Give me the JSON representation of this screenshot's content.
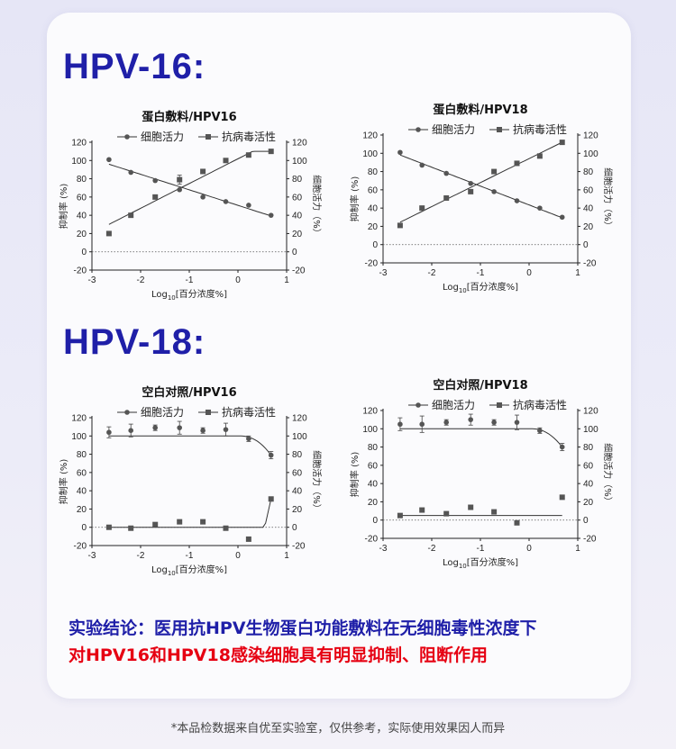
{
  "sections": [
    {
      "title": "HPV-16:"
    },
    {
      "title": "HPV-18:"
    }
  ],
  "conclusion": {
    "line1": "实验结论：医用抗HPV生物蛋白功能敷料在无细胞毒性浓度下",
    "line2": "对HPV16和HPV18感染细胞具有明显抑制、阻断作用"
  },
  "footnote": "*本品检数据来自优至实验室，仅供参考，实际使用效果因人而异",
  "colors": {
    "title": "#1f1fa8",
    "highlight": "#e60012",
    "marker": "#555555"
  },
  "chart_data": [
    {
      "type": "scatter",
      "title": "蛋白敷料/HPV16",
      "xlabel_main": "Log",
      "xlabel_sub": "10",
      "xlabel_tail": "[百分浓度%]",
      "ylabel_left": "抑制率 (%)",
      "ylabel_right": "细胞活力（%）",
      "xlim": [
        -3,
        1
      ],
      "ylim": [
        -20,
        120
      ],
      "xticks": [
        "-3",
        "-2",
        "-1",
        "0",
        "1"
      ],
      "yticks": [
        "-20",
        "0",
        "20",
        "40",
        "60",
        "80",
        "100",
        "120"
      ],
      "legend": [
        "细胞活力",
        "抗病毒活性"
      ],
      "series": [
        {
          "name": "细胞活力",
          "marker": "circle",
          "trend": "down",
          "x": [
            -2.65,
            -2.2,
            -1.7,
            -1.2,
            -0.72,
            -0.25,
            0.22,
            0.68
          ],
          "y": [
            101,
            87,
            78,
            68,
            60,
            55,
            51,
            40
          ],
          "err": [
            0,
            0,
            0,
            0,
            0,
            0,
            0,
            0
          ]
        },
        {
          "name": "抗病毒活性",
          "marker": "square",
          "trend": "up",
          "x": [
            -2.65,
            -2.2,
            -1.7,
            -1.2,
            -0.72,
            -0.25,
            0.22,
            0.68
          ],
          "y": [
            20,
            40,
            60,
            79,
            88,
            100,
            106,
            110
          ],
          "err": [
            0,
            0,
            0,
            5,
            0,
            0,
            0,
            0
          ]
        }
      ]
    },
    {
      "type": "scatter",
      "title": "蛋白敷料/HPV18",
      "xlabel_main": "Log",
      "xlabel_sub": "10",
      "xlabel_tail": "[百分浓度%]",
      "ylabel_left": "抑制率 (%)",
      "ylabel_right": "细胞活力（%）",
      "xlim": [
        -3,
        1
      ],
      "ylim": [
        -20,
        120
      ],
      "xticks": [
        "-3",
        "-2",
        "-1",
        "0",
        "1"
      ],
      "yticks": [
        "-20",
        "0",
        "20",
        "40",
        "60",
        "80",
        "100",
        "120"
      ],
      "legend": [
        "细胞活力",
        "抗病毒活性"
      ],
      "series": [
        {
          "name": "细胞活力",
          "marker": "circle",
          "trend": "down",
          "x": [
            -2.65,
            -2.2,
            -1.7,
            -1.2,
            -0.72,
            -0.25,
            0.22,
            0.68
          ],
          "y": [
            101,
            87,
            78,
            67,
            58,
            48,
            40,
            30
          ],
          "err": [
            0,
            0,
            0,
            0,
            0,
            0,
            0,
            0
          ]
        },
        {
          "name": "抗病毒活性",
          "marker": "square",
          "trend": "up",
          "x": [
            -2.65,
            -2.2,
            -1.7,
            -1.2,
            -0.72,
            -0.25,
            0.22,
            0.68
          ],
          "y": [
            21,
            40,
            51,
            58,
            80,
            89,
            97,
            112
          ],
          "err": [
            0,
            0,
            0,
            0,
            0,
            0,
            0,
            0
          ]
        }
      ]
    },
    {
      "type": "scatter",
      "title": "空白对照/HPV16",
      "xlabel_main": "Log",
      "xlabel_sub": "10",
      "xlabel_tail": "[百分浓度%]",
      "ylabel_left": "抑制率 (%)",
      "ylabel_right": "细胞活力（%）",
      "xlim": [
        -3,
        1
      ],
      "ylim": [
        -20,
        120
      ],
      "xticks": [
        "-3",
        "-2",
        "-1",
        "0",
        "1"
      ],
      "yticks": [
        "-20",
        "0",
        "20",
        "40",
        "60",
        "80",
        "100",
        "120"
      ],
      "legend": [
        "细胞活力",
        "抗病毒活性"
      ],
      "series": [
        {
          "name": "细胞活力",
          "marker": "circle",
          "trend": "plateau-drop",
          "x": [
            -2.65,
            -2.2,
            -1.7,
            -1.2,
            -0.72,
            -0.25,
            0.22,
            0.68
          ],
          "y": [
            104,
            106,
            109,
            109,
            106,
            107,
            97,
            79
          ],
          "err": [
            6,
            7,
            3,
            7,
            3,
            7,
            3,
            4
          ]
        },
        {
          "name": "抗病毒活性",
          "marker": "square",
          "trend": "flat-rise",
          "x": [
            -2.65,
            -2.2,
            -1.7,
            -1.2,
            -0.72,
            -0.25,
            0.22,
            0.68
          ],
          "y": [
            0,
            -1,
            3,
            6,
            6,
            -1,
            -13,
            31
          ],
          "err": [
            0,
            0,
            0,
            0,
            0,
            0,
            0,
            0
          ]
        }
      ]
    },
    {
      "type": "scatter",
      "title": "空白对照/HPV18",
      "xlabel_main": "Log",
      "xlabel_sub": "10",
      "xlabel_tail": "[百分浓度%]",
      "ylabel_left": "抑制率 (%)",
      "ylabel_right": "细胞活力（%）",
      "xlim": [
        -3,
        1
      ],
      "ylim": [
        -20,
        120
      ],
      "xticks": [
        "-3",
        "-2",
        "-1",
        "0",
        "1"
      ],
      "yticks": [
        "-20",
        "0",
        "20",
        "40",
        "60",
        "80",
        "100",
        "120"
      ],
      "legend": [
        "细胞活力",
        "抗病毒活性"
      ],
      "series": [
        {
          "name": "细胞活力",
          "marker": "circle",
          "trend": "plateau-drop",
          "x": [
            -2.65,
            -2.2,
            -1.7,
            -1.2,
            -0.72,
            -0.25,
            0.22,
            0.68
          ],
          "y": [
            105,
            105,
            107,
            110,
            107,
            107,
            98,
            80
          ],
          "err": [
            7,
            9,
            3,
            6,
            3,
            8,
            3,
            4
          ]
        },
        {
          "name": "抗病毒活性",
          "marker": "square",
          "trend": "flat-end-rise",
          "x": [
            -2.65,
            -2.2,
            -1.7,
            -1.2,
            -0.72,
            -0.25,
            0.68
          ],
          "y": [
            5,
            11,
            7,
            14,
            9,
            -3,
            25
          ],
          "err": [
            0,
            0,
            0,
            0,
            0,
            0,
            0
          ]
        }
      ]
    }
  ]
}
